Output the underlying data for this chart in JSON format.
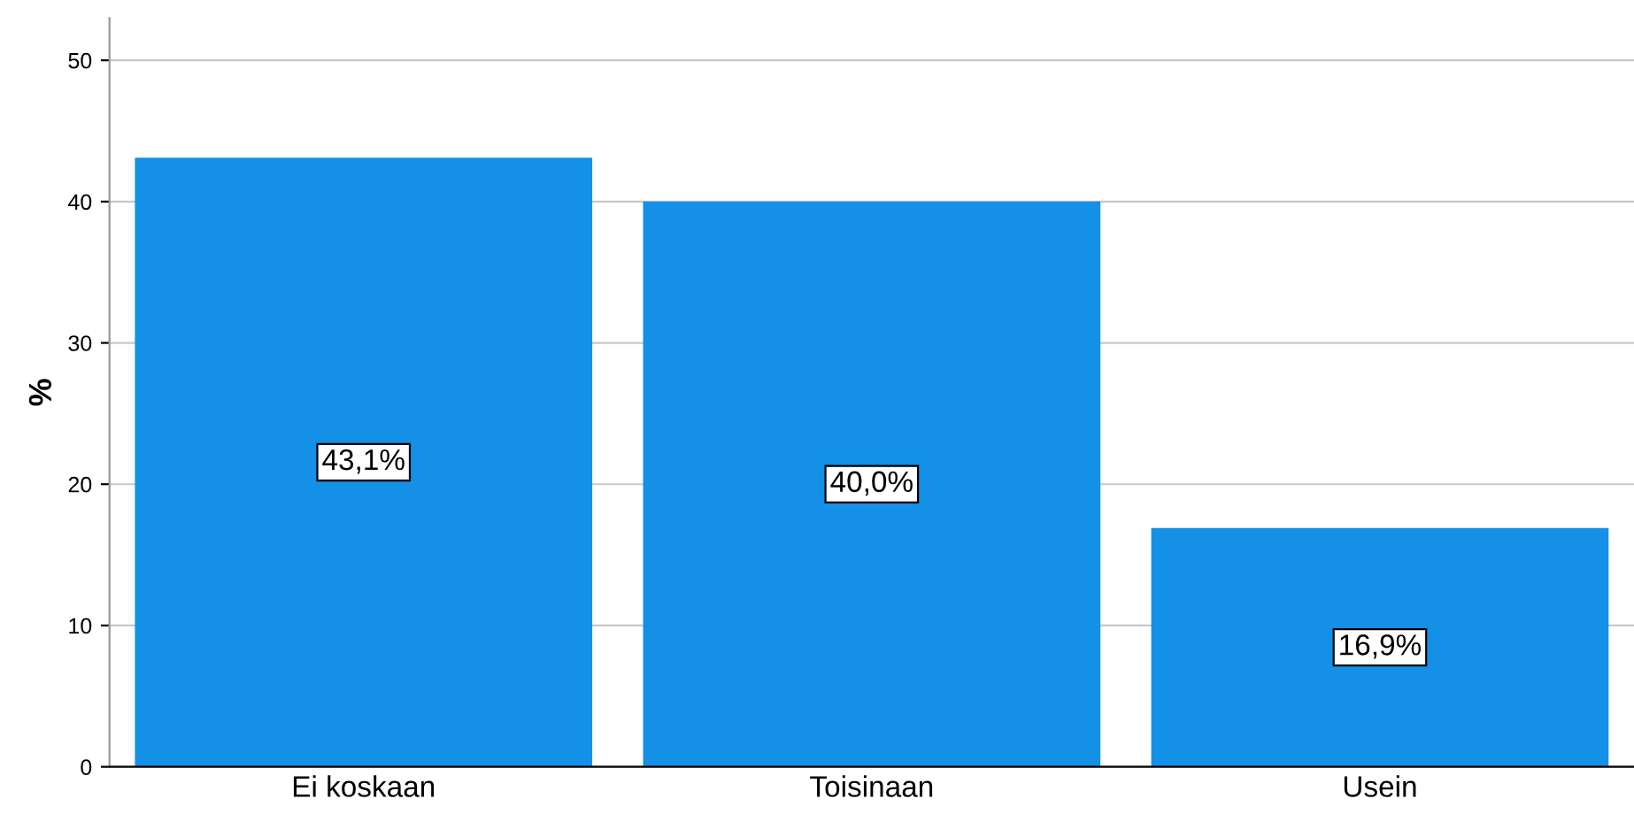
{
  "chart_data": {
    "type": "bar",
    "ylabel": "%",
    "categories": [
      "Ei koskaan",
      "Toisinaan",
      "Usein"
    ],
    "values": [
      43.1,
      40.0,
      16.9
    ],
    "value_labels": [
      "43,1%",
      "40,0%",
      "16,9%"
    ],
    "color": "#1490e6",
    "ylim": [
      0,
      53
    ],
    "yticks": [
      0,
      10,
      20,
      30,
      40,
      50
    ],
    "grid": "y"
  }
}
